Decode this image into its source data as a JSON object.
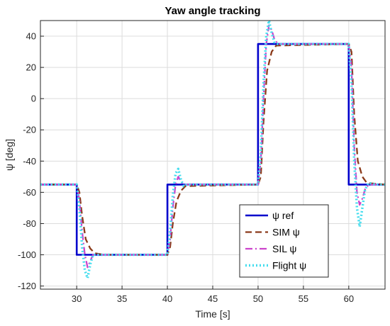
{
  "chart_data": {
    "type": "line",
    "title": "Yaw angle tracking",
    "xlabel": "Time [s]",
    "ylabel": "ψ [deg]",
    "xlim": [
      26,
      64
    ],
    "ylim": [
      -122,
      50
    ],
    "xticks": [
      30,
      35,
      40,
      45,
      50,
      55,
      60
    ],
    "yticks": [
      -120,
      -100,
      -80,
      -60,
      -40,
      -20,
      0,
      20,
      40
    ],
    "grid": true,
    "legend_position": "bottom-right",
    "series": [
      {
        "name": "ψ ref",
        "color": "#0000cc",
        "style": "solid",
        "x": [
          26,
          30,
          30,
          40,
          40,
          50,
          50,
          60,
          60,
          64
        ],
        "y": [
          -55,
          -55,
          -100,
          -100,
          -55,
          -55,
          35,
          35,
          -55,
          -55
        ]
      },
      {
        "name": "SIM ψ",
        "color": "#8b3a1a",
        "style": "dashed",
        "x": [
          26,
          30,
          30.3,
          30.6,
          31,
          31.5,
          32,
          33,
          40,
          40.3,
          40.6,
          41,
          41.5,
          42,
          50,
          50.3,
          50.6,
          51,
          51.5,
          52,
          60,
          60.3,
          60.6,
          61,
          61.5,
          62,
          64
        ],
        "y": [
          -55,
          -55,
          -60,
          -75,
          -90,
          -96,
          -99,
          -100,
          -100,
          -95,
          -80,
          -66,
          -59,
          -56,
          -55,
          -50,
          -15,
          18,
          30,
          34,
          35,
          30,
          -10,
          -40,
          -50,
          -54,
          -55
        ]
      },
      {
        "name": "SIL ψ",
        "color": "#cc44cc",
        "style": "dashdot",
        "x": [
          26,
          30,
          30.3,
          30.6,
          30.9,
          31.2,
          31.5,
          31.8,
          32.2,
          33,
          40,
          40.3,
          40.6,
          40.9,
          41.2,
          41.5,
          41.8,
          42.2,
          43,
          50,
          50.3,
          50.6,
          50.9,
          51.2,
          51.5,
          51.8,
          52.2,
          53,
          60,
          60.3,
          60.6,
          60.9,
          61.2,
          61.5,
          61.8,
          62.2,
          63,
          64
        ],
        "y": [
          -55,
          -55,
          -65,
          -85,
          -100,
          -108,
          -104,
          -100,
          -100,
          -100,
          -100,
          -90,
          -70,
          -55,
          -50,
          -53,
          -55,
          -55,
          -55,
          -55,
          -40,
          0,
          35,
          47,
          44,
          38,
          35,
          35,
          35,
          20,
          -30,
          -60,
          -68,
          -64,
          -58,
          -55,
          -55,
          -55
        ]
      },
      {
        "name": "Flight ψ",
        "color": "#44ddee",
        "style": "dotted",
        "x": [
          26,
          30,
          30.3,
          30.6,
          30.9,
          31.2,
          31.5,
          31.8,
          32.2,
          33,
          40,
          40.3,
          40.6,
          40.9,
          41.2,
          41.5,
          41.8,
          42.2,
          43,
          50,
          50.3,
          50.6,
          50.9,
          51.2,
          51.5,
          51.8,
          52.2,
          53,
          60,
          60.3,
          60.6,
          60.9,
          61.2,
          61.5,
          61.8,
          62.2,
          63,
          64
        ],
        "y": [
          -55,
          -55,
          -70,
          -95,
          -110,
          -115,
          -106,
          -100,
          -100,
          -100,
          -100,
          -85,
          -62,
          -48,
          -45,
          -52,
          -56,
          -55,
          -55,
          -55,
          -35,
          10,
          40,
          50,
          42,
          36,
          35,
          35,
          35,
          10,
          -40,
          -70,
          -82,
          -70,
          -58,
          -54,
          -55,
          -55
        ]
      }
    ]
  }
}
